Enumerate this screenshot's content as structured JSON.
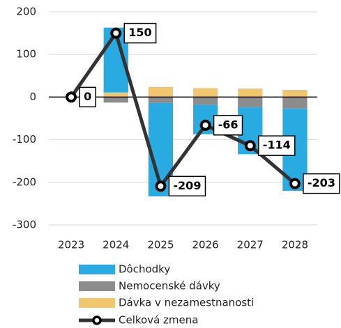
{
  "chart_data": {
    "type": "bar",
    "stacked": true,
    "categories": [
      "2023",
      "2024",
      "2025",
      "2026",
      "2027",
      "2028"
    ],
    "series": [
      {
        "name": "Dôchodky",
        "color": "#29abe2",
        "values": [
          0,
          152,
          -220,
          -69,
          -110,
          -194
        ]
      },
      {
        "name": "Nemocenské dávky",
        "color": "#8c8c8c",
        "values": [
          0,
          -13,
          -13,
          -18,
          -24,
          -26
        ]
      },
      {
        "name": "Dávka v nezamestnanosti",
        "color": "#f2c66d",
        "values": [
          0,
          11,
          24,
          21,
          20,
          17
        ]
      }
    ],
    "line": {
      "name": "Celková zmena",
      "color": "#333333",
      "values": [
        0,
        150,
        -209,
        -66,
        -114,
        -203
      ]
    },
    "ylim": [
      -300,
      200
    ],
    "yticks": [
      -300,
      -200,
      -100,
      0,
      100,
      200
    ],
    "grid": true
  }
}
